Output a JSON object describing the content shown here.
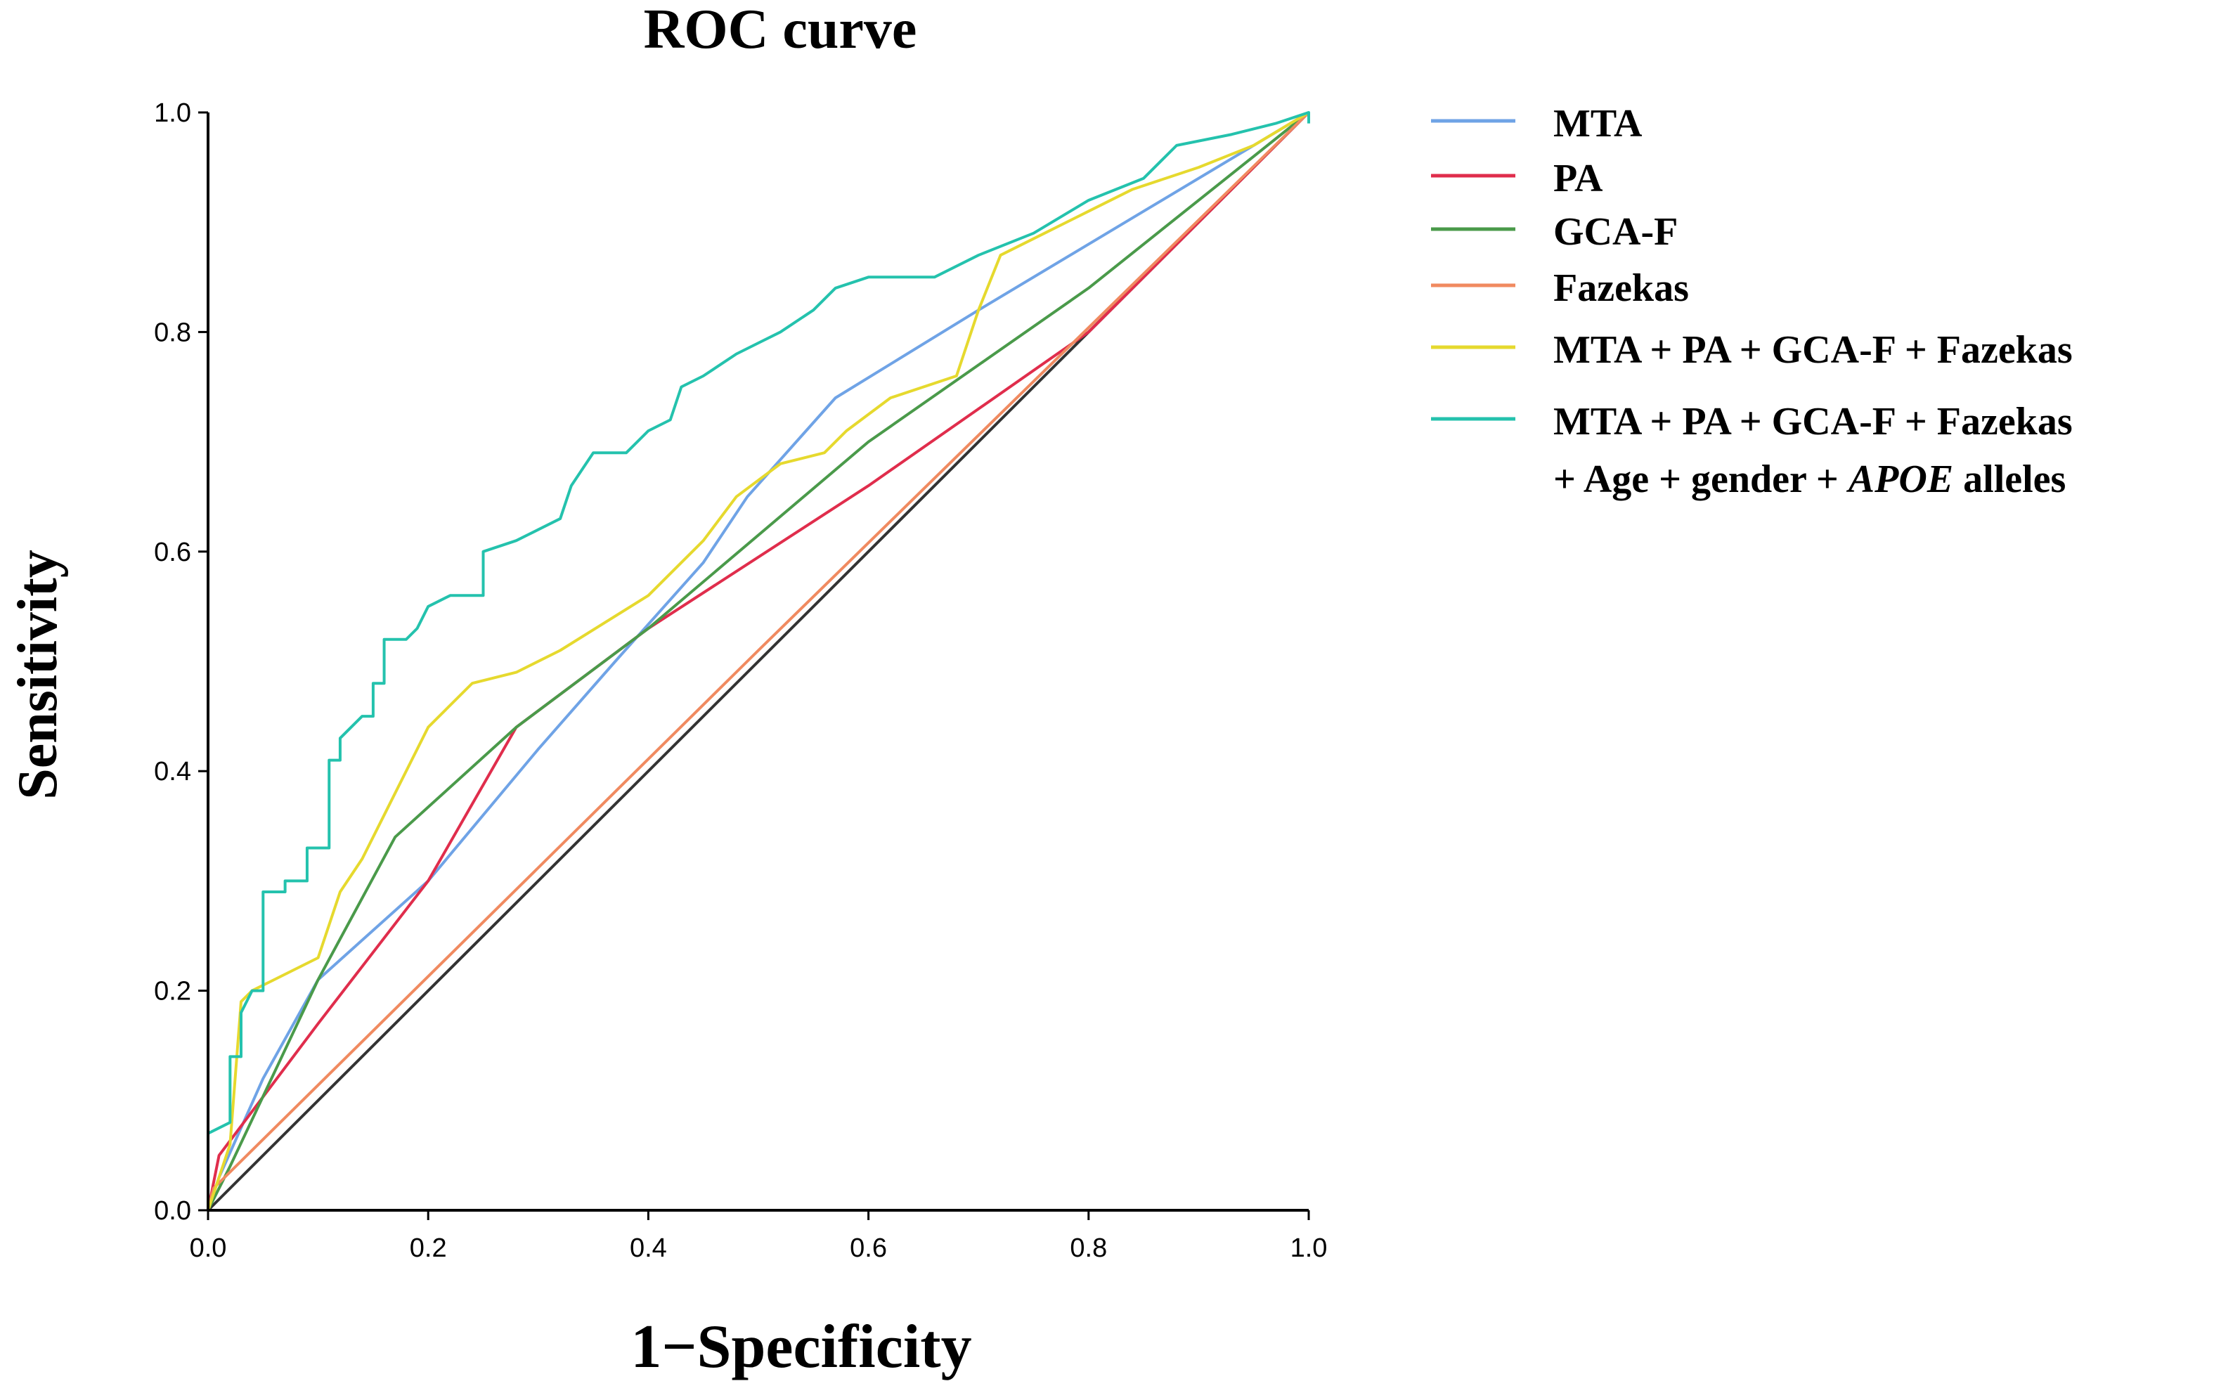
{
  "chart_data": {
    "type": "line",
    "title": "ROC curve",
    "xlabel": "1−Specificity",
    "ylabel": "Sensitivity",
    "xlim": [
      0,
      1
    ],
    "ylim": [
      0,
      1
    ],
    "xticks": [
      "0.0",
      "0.2",
      "0.4",
      "0.6",
      "0.8",
      "1.0"
    ],
    "yticks": [
      "0.0",
      "0.2",
      "0.4",
      "0.6",
      "0.8",
      "1.0"
    ],
    "grid": false,
    "legend_position": "right",
    "reference_line": {
      "color": "#333333",
      "points": [
        [
          0,
          0
        ],
        [
          1,
          1
        ]
      ]
    },
    "series": [
      {
        "name": "MTA",
        "label_lines": [
          {
            "text": "MTA"
          }
        ],
        "color": "#6fa3e6",
        "points": [
          [
            0,
            0
          ],
          [
            0.01,
            0.03
          ],
          [
            0.05,
            0.12
          ],
          [
            0.1,
            0.21
          ],
          [
            0.2,
            0.3
          ],
          [
            0.3,
            0.42
          ],
          [
            0.37,
            0.5
          ],
          [
            0.45,
            0.59
          ],
          [
            0.49,
            0.65
          ],
          [
            0.57,
            0.74
          ],
          [
            0.7,
            0.82
          ],
          [
            0.85,
            0.91
          ],
          [
            1,
            1
          ]
        ]
      },
      {
        "name": "PA",
        "label_lines": [
          {
            "text": "PA"
          }
        ],
        "color": "#e02d4c",
        "points": [
          [
            0,
            0
          ],
          [
            0.01,
            0.05
          ],
          [
            0.1,
            0.17
          ],
          [
            0.2,
            0.3
          ],
          [
            0.28,
            0.44
          ],
          [
            0.4,
            0.53
          ],
          [
            0.6,
            0.66
          ],
          [
            0.8,
            0.8
          ],
          [
            1,
            1
          ]
        ]
      },
      {
        "name": "GCA-F",
        "label_lines": [
          {
            "text": "GCA-F"
          }
        ],
        "color": "#4a9a4a",
        "points": [
          [
            0,
            0
          ],
          [
            0.02,
            0.04
          ],
          [
            0.1,
            0.21
          ],
          [
            0.17,
            0.34
          ],
          [
            0.28,
            0.44
          ],
          [
            0.4,
            0.53
          ],
          [
            0.6,
            0.7
          ],
          [
            0.8,
            0.84
          ],
          [
            1,
            1
          ]
        ]
      },
      {
        "name": "Fazekas",
        "label_lines": [
          {
            "text": "Fazekas"
          }
        ],
        "color": "#f08a60",
        "points": [
          [
            0,
            0
          ],
          [
            0.005,
            0.02
          ],
          [
            0.5,
            0.51
          ],
          [
            1,
            1
          ]
        ]
      },
      {
        "name": "MTA + PA + GCA-F + Fazekas",
        "label_lines": [
          {
            "text": "MTA + PA + GCA-F + Fazekas"
          }
        ],
        "color": "#e6d92e",
        "points": [
          [
            0,
            0
          ],
          [
            0.02,
            0.06
          ],
          [
            0.03,
            0.19
          ],
          [
            0.04,
            0.2
          ],
          [
            0.06,
            0.21
          ],
          [
            0.1,
            0.23
          ],
          [
            0.12,
            0.29
          ],
          [
            0.14,
            0.32
          ],
          [
            0.16,
            0.36
          ],
          [
            0.2,
            0.44
          ],
          [
            0.24,
            0.48
          ],
          [
            0.28,
            0.49
          ],
          [
            0.32,
            0.51
          ],
          [
            0.4,
            0.56
          ],
          [
            0.45,
            0.61
          ],
          [
            0.48,
            0.65
          ],
          [
            0.52,
            0.68
          ],
          [
            0.56,
            0.69
          ],
          [
            0.58,
            0.71
          ],
          [
            0.62,
            0.74
          ],
          [
            0.68,
            0.76
          ],
          [
            0.7,
            0.82
          ],
          [
            0.72,
            0.87
          ],
          [
            0.76,
            0.89
          ],
          [
            0.8,
            0.91
          ],
          [
            0.84,
            0.93
          ],
          [
            0.9,
            0.95
          ],
          [
            0.95,
            0.97
          ],
          [
            1,
            1
          ]
        ]
      },
      {
        "name": "MTA + PA + GCA-F + Fazekas + Age + gender + APOE alleles",
        "label_lines": [
          {
            "text": "MTA + PA + GCA-F + Fazekas"
          },
          {
            "text": "+ Age + gender + ",
            "italic": "APOE",
            "suffix": " alleles"
          }
        ],
        "color": "#24c2ad",
        "points": [
          [
            0,
            0
          ],
          [
            0,
            0.07
          ],
          [
            0.02,
            0.08
          ],
          [
            0.02,
            0.14
          ],
          [
            0.03,
            0.14
          ],
          [
            0.03,
            0.18
          ],
          [
            0.04,
            0.2
          ],
          [
            0.05,
            0.2
          ],
          [
            0.05,
            0.29
          ],
          [
            0.07,
            0.29
          ],
          [
            0.07,
            0.3
          ],
          [
            0.09,
            0.3
          ],
          [
            0.09,
            0.33
          ],
          [
            0.11,
            0.33
          ],
          [
            0.11,
            0.41
          ],
          [
            0.12,
            0.41
          ],
          [
            0.12,
            0.43
          ],
          [
            0.13,
            0.44
          ],
          [
            0.14,
            0.45
          ],
          [
            0.15,
            0.45
          ],
          [
            0.15,
            0.48
          ],
          [
            0.16,
            0.48
          ],
          [
            0.16,
            0.52
          ],
          [
            0.18,
            0.52
          ],
          [
            0.19,
            0.53
          ],
          [
            0.2,
            0.55
          ],
          [
            0.22,
            0.56
          ],
          [
            0.25,
            0.56
          ],
          [
            0.25,
            0.6
          ],
          [
            0.28,
            0.61
          ],
          [
            0.3,
            0.62
          ],
          [
            0.32,
            0.63
          ],
          [
            0.33,
            0.66
          ],
          [
            0.35,
            0.69
          ],
          [
            0.38,
            0.69
          ],
          [
            0.4,
            0.71
          ],
          [
            0.42,
            0.72
          ],
          [
            0.43,
            0.75
          ],
          [
            0.45,
            0.76
          ],
          [
            0.48,
            0.78
          ],
          [
            0.5,
            0.79
          ],
          [
            0.52,
            0.8
          ],
          [
            0.55,
            0.82
          ],
          [
            0.57,
            0.84
          ],
          [
            0.6,
            0.85
          ],
          [
            0.66,
            0.85
          ],
          [
            0.7,
            0.87
          ],
          [
            0.75,
            0.89
          ],
          [
            0.8,
            0.92
          ],
          [
            0.85,
            0.94
          ],
          [
            0.88,
            0.97
          ],
          [
            0.93,
            0.98
          ],
          [
            0.97,
            0.99
          ],
          [
            1,
            1
          ],
          [
            1,
            0.99
          ]
        ]
      }
    ]
  }
}
